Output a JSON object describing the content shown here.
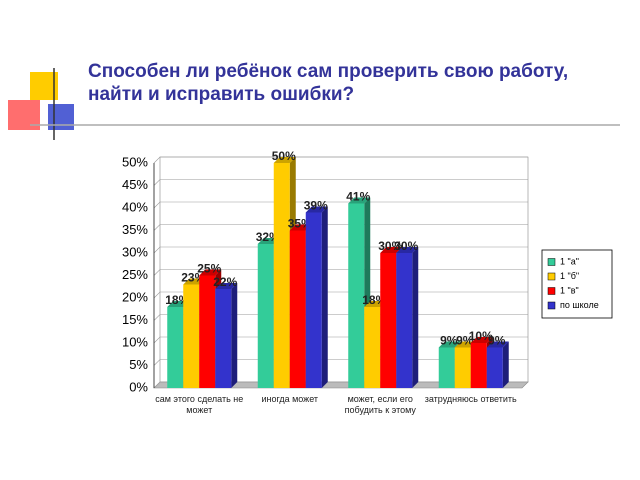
{
  "chart_data": {
    "type": "bar",
    "title": "Способен ли ребёнок сам проверить свою работу, найти и исправить ошибки?",
    "categories": [
      "сам этого сделать не может",
      "иногда может",
      "может, если его побудить к этому",
      "затрудняюсь ответить"
    ],
    "series": [
      {
        "name": "1 \"а\"",
        "color": "#33cc99",
        "values": [
          18,
          32,
          41,
          9
        ],
        "value_labels": [
          "18%",
          "32%",
          "41%",
          "9%"
        ]
      },
      {
        "name": "1 \"б\"",
        "color": "#ffcc00",
        "values": [
          23,
          50,
          18,
          9
        ],
        "value_labels": [
          "23%",
          "50%",
          "18%",
          "9%"
        ]
      },
      {
        "name": "1 \"в\"",
        "color": "#ff0000",
        "values": [
          25,
          35,
          30,
          10
        ],
        "value_labels": [
          "25%",
          "35%",
          "30%",
          "10%"
        ]
      },
      {
        "name": "по школе",
        "color": "#3333cc",
        "values": [
          22,
          39,
          30,
          9
        ],
        "value_labels": [
          "22%",
          "39%",
          "30%",
          "9%"
        ]
      }
    ],
    "ylim": [
      0,
      50
    ],
    "yticks": [
      {
        "value": 0,
        "label": "0%"
      },
      {
        "value": 5,
        "label": "5%"
      },
      {
        "value": 10,
        "label": "10%"
      },
      {
        "value": 15,
        "label": "15%"
      },
      {
        "value": 20,
        "label": "20%"
      },
      {
        "value": 25,
        "label": "25%"
      },
      {
        "value": 30,
        "label": "30%"
      },
      {
        "value": 35,
        "label": "35%"
      },
      {
        "value": 40,
        "label": "40%"
      },
      {
        "value": 45,
        "label": "45%"
      },
      {
        "value": 50,
        "label": "50%"
      }
    ],
    "grid": true,
    "legend": "right"
  }
}
